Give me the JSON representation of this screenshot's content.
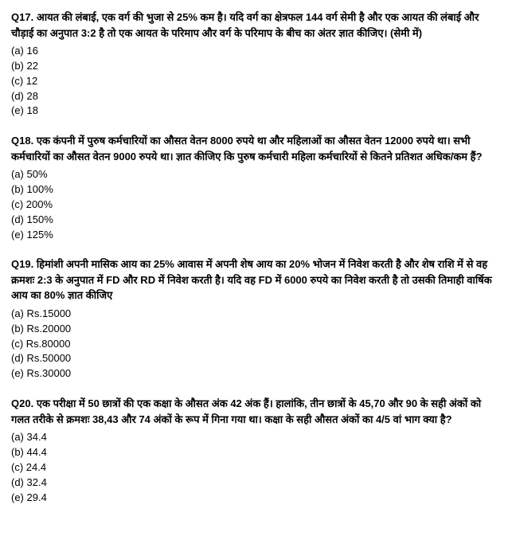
{
  "questions": [
    {
      "label": "Q17.",
      "text": "आयत की लंबाई, एक वर्ग की भुजा से 25% कम है। यदि वर्ग का क्षेत्रफल 144 वर्ग सेमी है और एक आयत की लंबाई और चौड़ाई का अनुपात 3:2 है तो एक आयत के परिमाप और वर्ग के परिमाप के बीच का अंतर ज्ञात कीजिए। (सेमी में)",
      "options": [
        "(a) 16",
        "(b) 22",
        "(c) 12",
        "(d) 28",
        "(e) 18"
      ]
    },
    {
      "label": "Q18.",
      "text": "एक कंपनी में पुरुष कर्मचारियों का औसत वेतन 8000 रुपये था और महिलाओं का औसत वेतन 12000 रुपये था। सभी कर्मचारियों का औसत वेतन 9000 रुपये था। ज्ञात कीजिए कि पुरुष कर्मचारी महिला कर्मचारियों से कितने प्रतिशत अधिक/कम हैं?",
      "options": [
        "(a) 50%",
        "(b) 100%",
        "(c) 200%",
        "(d) 150%",
        "(e) 125%"
      ]
    },
    {
      "label": "Q19.",
      "text": "हिमांशी अपनी मासिक आय का 25% आवास में अपनी शेष आय का 20% भोजन में निवेश करती है और शेष राशि में से वह क्रमशः 2:3 के अनुपात में FD और RD में निवेश करती है। यदि वह FD में 6000 रुपये का निवेश करती है तो उसकी तिमाही वार्षिक आय का 80% ज्ञात कीजिए",
      "options": [
        "(a) Rs.15000",
        "(b) Rs.20000",
        "(c) Rs.80000",
        "(d) Rs.50000",
        "(e) Rs.30000"
      ]
    },
    {
      "label": "Q20.",
      "text": "एक परीक्षा में 50 छात्रों की एक कक्षा के औसत अंक 42 अंक हैं। हालांकि, तीन छात्रों के 45,70 और 90 के सही अंकों को गलत तरीके से क्रमशः 38,43 और 74 अंकों के रूप में गिना गया था। कक्षा के सही औसत अंकों का 4/5 वां भाग क्या है?",
      "options": [
        "(a) 34.4",
        "(b) 44.4",
        "(c) 24.4",
        "(d) 32.4",
        "(e) 29.4"
      ]
    }
  ]
}
